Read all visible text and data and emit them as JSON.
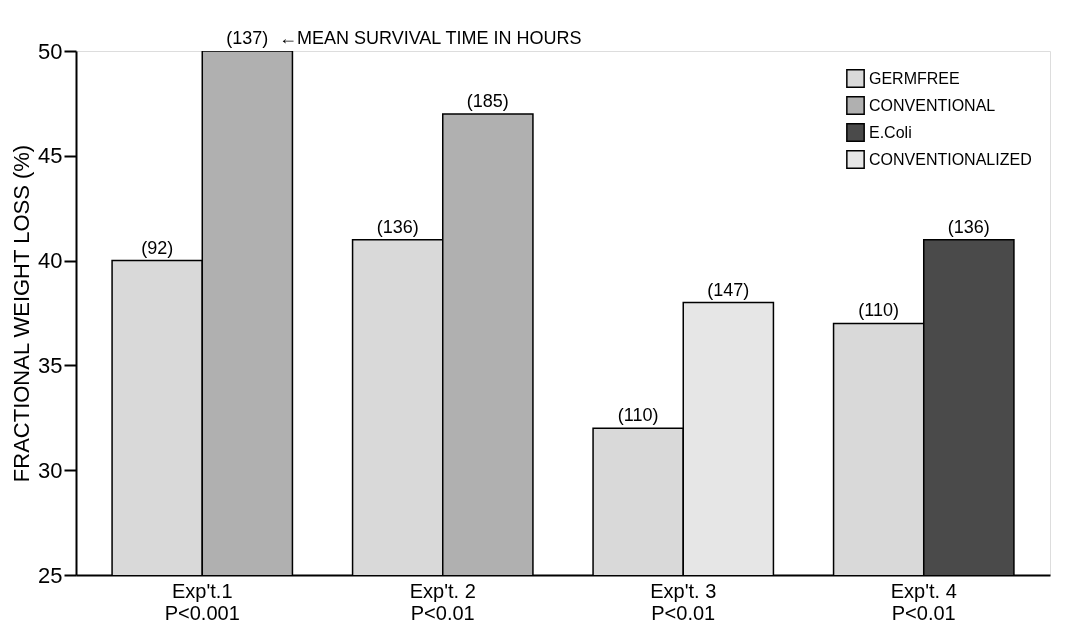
{
  "chart_data": {
    "type": "bar",
    "ylabel": "FRACTIONAL WEIGHT LOSS (%)",
    "categories": [
      "Exp't.1\nP<0.001",
      "Exp't. 2\nP<0.01",
      "Exp't. 3\nP<0.01",
      "Exp't. 4\nP<0.01"
    ],
    "series": [
      {
        "name": "GERMFREE",
        "color": "#d9d9d9",
        "values": [
          40,
          41,
          32,
          37
        ]
      },
      {
        "name": "CONVENTIONAL",
        "color": "#b0b0b0",
        "values": [
          50,
          47,
          null,
          null
        ]
      },
      {
        "name": "E.Coli",
        "color": "#4a4a4a",
        "values": [
          null,
          null,
          null,
          41
        ]
      },
      {
        "name": "CONVENTIONALIZED",
        "color": "#e6e6e6",
        "values": [
          null,
          null,
          38,
          null
        ]
      }
    ],
    "ylim": [
      25,
      50
    ],
    "yticks": [
      25,
      30,
      35,
      40,
      45,
      50
    ],
    "grid": false,
    "legend": "top right",
    "annotations": [
      {
        "text": "(92)",
        "x": "Exp't.1\nP<0.001",
        "y": 40
      },
      {
        "text": "(137)",
        "x": "Exp't.1\nP<0.001",
        "y": 50
      },
      "←MEAN SURVIVAL TIME IN HOURS",
      {
        "text": "(136)",
        "x": "Exp't. 2\nP<0.01",
        "y": 41
      },
      {
        "text": "(185)",
        "x": "Exp't. 2\nP<0.01",
        "y": 47
      },
      {
        "text": "(110)",
        "x": "Exp't. 3\nP<0.01",
        "y": 32
      },
      {
        "text": "(147)",
        "x": "Exp't. 3\nP<0.01",
        "y": 38
      },
      {
        "text": "(110)",
        "x": "Exp't. 4\nP<0.01",
        "y": 37
      },
      {
        "text": "(136)",
        "x": "Exp't. 4\nP<0.01",
        "y": 41
      }
    ]
  }
}
